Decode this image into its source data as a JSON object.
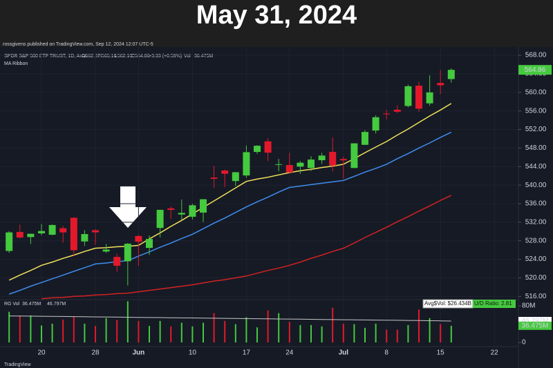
{
  "chart_data": {
    "type": "candlestick",
    "title": "May 31, 2024",
    "publisher": "rossgivens published on TradingView.com, Sep 12, 2024 12:07 UTC-5",
    "symbol": "SPDR S&P 500 ETF TRUST, 1D, Arca",
    "legend_values": [
      "O562.87",
      "H565.16",
      "L562.10",
      "C564.86",
      "+3.33 (+0.59%)",
      "Vol",
      "36.475M"
    ],
    "indicator": "MA Ribbon",
    "volume_title": "RG Vol",
    "volume_legend": [
      "36.475M",
      "46.797M"
    ],
    "volume_boxes": [
      "Avg$Vol: $26.434B",
      "U/D Ratio: 2.81"
    ],
    "volume_tags": [
      "46.797M",
      "36.475M"
    ],
    "brand": "TradingView",
    "categories": [
      null,
      null,
      null,
      "20",
      null,
      null,
      null,
      null,
      "28",
      null,
      null,
      null,
      "Jun",
      null,
      null,
      null,
      null,
      "10",
      null,
      null,
      null,
      null,
      "17",
      null,
      null,
      null,
      "24",
      null,
      null,
      null,
      null,
      "Jul",
      null,
      null,
      null,
      "8",
      null,
      null,
      null,
      null,
      "15",
      null,
      null,
      null,
      null,
      "22"
    ],
    "open": [
      525.8,
      529.9,
      528.8,
      529.6,
      529.3,
      530.7,
      532.96,
      527.85,
      530.27,
      525.68,
      524.52,
      523.59,
      529.02,
      526.46,
      530.77,
      534.98,
      533.66,
      533.18,
      534.07,
      541.63,
      543.15,
      540.88,
      542.08,
      547.16,
      549.44,
      544.4,
      544.33,
      543.99,
      543.69,
      545.37,
      547.16,
      545.63,
      543.7,
      548.69,
      551.77,
      555.44,
      556.26,
      557.07,
      561.44,
      557.63,
      562.03,
      562.87,
      null,
      null,
      null,
      null
    ],
    "high": [
      530.1,
      531.5,
      529.5,
      531.6,
      531.5,
      531.2,
      533.07,
      530.27,
      530.51,
      527.31,
      525.2,
      527.5,
      529.31,
      529.15,
      534.69,
      535.42,
      536.89,
      535.99,
      537.01,
      544.12,
      543.33,
      542.81,
      548.53,
      548.62,
      550.12,
      545.65,
      546.95,
      545.2,
      546.24,
      546.96,
      550.28,
      546.14,
      549.01,
      551.83,
      555.05,
      556.25,
      557.18,
      561.67,
      562.33,
      563.67,
      564.84,
      565.16,
      null,
      null,
      null,
      null
    ],
    "low": [
      525.4,
      528.5,
      527.3,
      529.2,
      529.2,
      527.6,
      524.7,
      526.88,
      527.11,
      525.37,
      521.33,
      518.36,
      522.6,
      524.96,
      528.73,
      532.68,
      532.54,
      532.57,
      532.05,
      539.41,
      539.59,
      539.85,
      541.61,
      546.73,
      545.18,
      543.02,
      542.62,
      542.44,
      543.03,
      544.61,
      542.95,
      541.4,
      543.65,
      548.65,
      551.12,
      554.19,
      555.52,
      556.77,
      555.83,
      557.15,
      559.63,
      562.1,
      null,
      null,
      null,
      null
    ],
    "close": [
      529.8,
      528.7,
      529.5,
      530.1,
      531.4,
      529.8,
      525.96,
      529.44,
      529.81,
      526.1,
      522.61,
      527.37,
      527.8,
      528.39,
      534.67,
      534.66,
      534.01,
      535.66,
      536.95,
      541.36,
      542.45,
      542.78,
      547.1,
      548.49,
      547.0,
      544.51,
      542.74,
      544.83,
      545.51,
      546.37,
      544.22,
      545.34,
      549.01,
      551.46,
      554.64,
      555.28,
      555.82,
      561.32,
      556.48,
      559.99,
      561.53,
      564.86,
      null,
      null,
      null,
      null
    ],
    "up_color": "#45c93f",
    "down_color": "#e3192b",
    "ma_series": [
      {
        "color": "#f2e35a",
        "values": [
          519.5,
          520.6,
          521.6,
          522.7,
          523.4,
          524.2,
          524.9,
          525.7,
          526.4,
          526.5,
          526.7,
          526.8,
          527.0,
          528.4,
          529.7,
          531.1,
          532.4,
          533.8,
          535.2,
          536.6,
          538.0,
          539.4,
          540.8,
          541.3,
          541.7,
          542.2,
          542.7,
          543.1,
          543.4,
          543.8,
          544.1,
          544.5,
          545.7,
          547.0,
          548.2,
          549.4,
          550.8,
          552.1,
          553.5,
          554.9,
          556.2,
          557.6,
          null,
          null,
          null,
          null
        ]
      },
      {
        "color": "#3f8ef0",
        "values": [
          516.5,
          517.3,
          518.2,
          519.0,
          519.8,
          520.6,
          521.4,
          522.2,
          523.0,
          523.2,
          523.5,
          523.7,
          524.7,
          525.6,
          526.6,
          527.5,
          528.5,
          529.4,
          530.6,
          531.8,
          532.9,
          534.1,
          535.3,
          536.4,
          537.4,
          538.5,
          539.5,
          539.8,
          540.1,
          540.4,
          540.7,
          541.0,
          541.9,
          542.8,
          543.6,
          544.5,
          545.7,
          546.8,
          548.0,
          549.1,
          550.3,
          551.4,
          null,
          null,
          null,
          null
        ]
      },
      {
        "color": "#d42222",
        "values": [
          null,
          null,
          null,
          515.5,
          515.7,
          515.8,
          516.0,
          516.1,
          516.3,
          516.4,
          516.6,
          516.7,
          517.0,
          517.3,
          517.6,
          517.9,
          518.2,
          518.5,
          518.9,
          519.3,
          519.6,
          520.0,
          520.4,
          521.0,
          521.6,
          522.1,
          522.7,
          523.4,
          524.2,
          524.9,
          525.7,
          526.4,
          527.5,
          528.7,
          529.8,
          530.9,
          532.1,
          533.2,
          534.4,
          535.5,
          536.7,
          537.8,
          null,
          null,
          null,
          null
        ]
      }
    ],
    "ylim": [
      515.6,
      569.2
    ],
    "yticks": [
      {
        "value": 516,
        "label": "516.00"
      },
      {
        "value": 520,
        "label": "520.00"
      },
      {
        "value": 524,
        "label": "524.00"
      },
      {
        "value": 528,
        "label": "528.00"
      },
      {
        "value": 532,
        "label": "532.00"
      },
      {
        "value": 536,
        "label": "536.00"
      },
      {
        "value": 540,
        "label": "540.00"
      },
      {
        "value": 544,
        "label": "544.00"
      },
      {
        "value": 548,
        "label": "548.00"
      },
      {
        "value": 552,
        "label": "552.00"
      },
      {
        "value": 556,
        "label": "556.00"
      },
      {
        "value": 560,
        "label": "560.00"
      },
      {
        "value": 564,
        "label": "564.00"
      },
      {
        "value": 568,
        "label": "568.00"
      }
    ],
    "volume": [
      67,
      59,
      59,
      37,
      41,
      50,
      57,
      41,
      36,
      53,
      49,
      90,
      47,
      36,
      47,
      35,
      43,
      35,
      43,
      64,
      47,
      40,
      55,
      33,
      70,
      64,
      45,
      38,
      38,
      35,
      76,
      41,
      40,
      32,
      41,
      28,
      28,
      38,
      72,
      53,
      40,
      36.475,
      null,
      null,
      null,
      null
    ],
    "volume_avg": {
      "color": "#c8c8c8",
      "values": [
        58.0,
        57.7,
        57.5,
        57.2,
        56.9,
        56.7,
        56.4,
        56.1,
        55.9,
        55.6,
        55.3,
        55.1,
        54.8,
        54.5,
        54.3,
        54.0,
        53.7,
        53.5,
        53.2,
        52.9,
        52.7,
        52.4,
        52.1,
        51.9,
        51.6,
        51.3,
        51.1,
        50.8,
        50.5,
        50.3,
        50.0,
        49.7,
        49.5,
        49.2,
        48.9,
        48.7,
        48.4,
        48.1,
        47.9,
        47.6,
        47.3,
        46.797,
        null,
        null,
        null,
        null
      ]
    },
    "vol_ylim": [
      -6,
      89
    ],
    "vol_ticks": [
      {
        "value": 80,
        "label": "80M"
      },
      {
        "value": 0,
        "label": "0"
      }
    ],
    "grid": true
  }
}
